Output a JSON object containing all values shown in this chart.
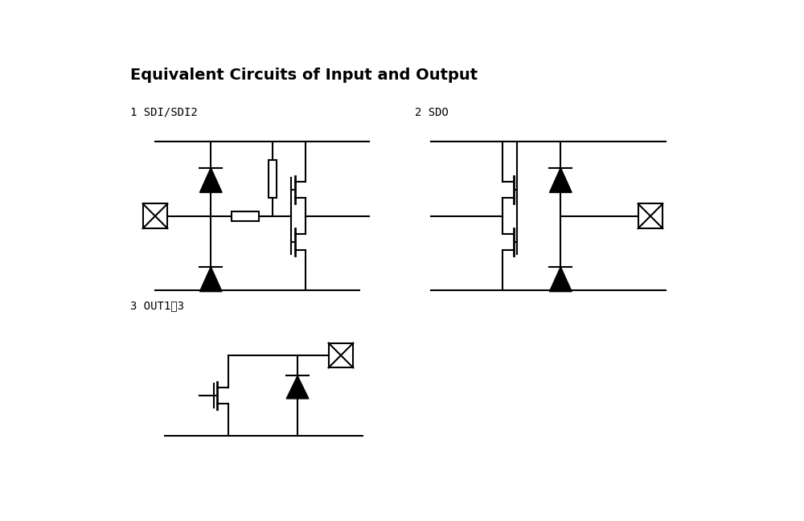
{
  "title": "Equivalent Circuits of Input and Output",
  "label1": "1 SDI/SDI2",
  "label2": "2 SDO",
  "label3": "3 OUT1˃3",
  "bg_color": "#ffffff",
  "line_color": "#000000",
  "lw": 1.5
}
